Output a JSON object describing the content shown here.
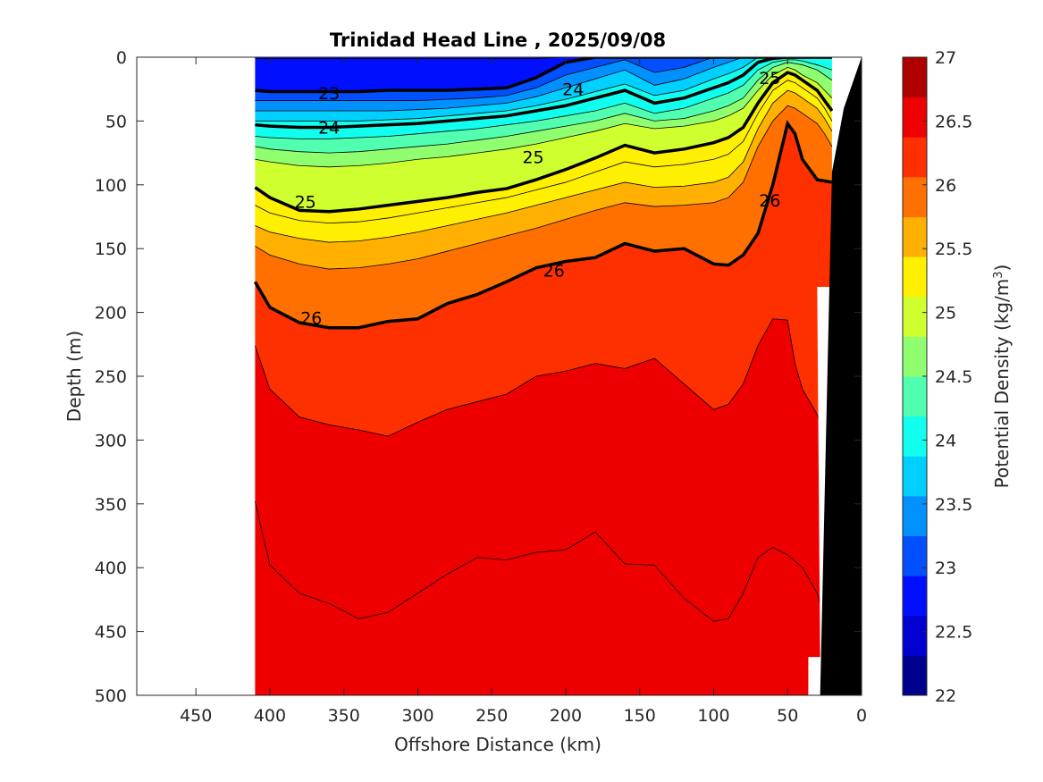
{
  "chart_data": {
    "type": "contour",
    "title": "Trinidad Head Line , 2025/09/08",
    "xlabel": "Offshore Distance (km)",
    "ylabel": "Depth (m)",
    "colorbar_label": "Potential Density (kg/m",
    "colorbar_label_sup": "3",
    "colorbar_label_end": ")",
    "xlim": [
      490,
      0
    ],
    "ylim": [
      500,
      0
    ],
    "x_reversed": true,
    "y_reversed": true,
    "x_ticks": [
      450,
      400,
      350,
      300,
      250,
      200,
      150,
      100,
      50,
      0
    ],
    "y_ticks": [
      0,
      50,
      100,
      150,
      200,
      250,
      300,
      350,
      400,
      450,
      500
    ],
    "colorbar_range": [
      22,
      27
    ],
    "colorbar_ticks": [
      "22",
      "22.5",
      "23",
      "23.5",
      "24",
      "24.5",
      "25",
      "25.5",
      "26",
      "26.5",
      "27"
    ],
    "colormap": [
      "#00008f",
      "#0000d0",
      "#0010ff",
      "#0050ff",
      "#0090ff",
      "#00d0ff",
      "#10ffef",
      "#50ffaf",
      "#90ff6f",
      "#d0ff2f",
      "#ffef00",
      "#ffb000",
      "#ff7000",
      "#ff3000",
      "#ef0000",
      "#af0000"
    ],
    "section_x_range": [
      410,
      20
    ],
    "bathymetry_color": "#000000",
    "data_column_x": [
      410,
      400,
      380,
      360,
      340,
      320,
      300,
      280,
      260,
      240,
      220,
      200,
      180,
      160,
      140,
      120,
      100,
      90,
      80,
      70,
      60,
      50,
      45,
      40,
      30,
      25,
      20
    ],
    "isopycnals": [
      {
        "value": 22.75,
        "depth": [
          1,
          1,
          1,
          1,
          1,
          1,
          1,
          1,
          1,
          1,
          1,
          0,
          0,
          0,
          0,
          0,
          0,
          0,
          0,
          0,
          0,
          0,
          0,
          0,
          0,
          0,
          0
        ]
      },
      {
        "value": 23.0,
        "depth": [
          26,
          27,
          27,
          27,
          27,
          26,
          26,
          26,
          25,
          24,
          16,
          4,
          0,
          0,
          0,
          0,
          0,
          0,
          0,
          0,
          0,
          0,
          0,
          0,
          0,
          0,
          0
        ]
      },
      {
        "value": 23.25,
        "depth": [
          34,
          34,
          34,
          34,
          34,
          34,
          34,
          33,
          32,
          30,
          24,
          14,
          8,
          2,
          12,
          8,
          0,
          0,
          0,
          0,
          0,
          0,
          0,
          0,
          0,
          0,
          0
        ]
      },
      {
        "value": 23.5,
        "depth": [
          42,
          42,
          42,
          42,
          42,
          42,
          41,
          40,
          38,
          36,
          31,
          24,
          17,
          10,
          22,
          17,
          8,
          4,
          0,
          0,
          0,
          0,
          0,
          0,
          0,
          0,
          0
        ]
      },
      {
        "value": 23.75,
        "depth": [
          50,
          50,
          50,
          50,
          50,
          49,
          48,
          46,
          44,
          42,
          38,
          33,
          27,
          21,
          30,
          26,
          17,
          13,
          8,
          0,
          0,
          0,
          0,
          0,
          0,
          0,
          0
        ]
      },
      {
        "value": 24.0,
        "depth": [
          53,
          54,
          55,
          55,
          54,
          53,
          52,
          50,
          48,
          46,
          42,
          38,
          32,
          26,
          36,
          32,
          24,
          20,
          14,
          4,
          1,
          0,
          0,
          0,
          0,
          0,
          0
        ]
      },
      {
        "value": 24.25,
        "depth": [
          62,
          63,
          64,
          64,
          63,
          62,
          60,
          58,
          56,
          53,
          50,
          46,
          42,
          36,
          44,
          40,
          32,
          28,
          22,
          10,
          4,
          2,
          2,
          3,
          6,
          8,
          10
        ]
      },
      {
        "value": 24.5,
        "depth": [
          70,
          72,
          74,
          75,
          74,
          72,
          70,
          68,
          65,
          62,
          58,
          54,
          50,
          44,
          50,
          48,
          42,
          38,
          32,
          18,
          8,
          4,
          5,
          6,
          10,
          14,
          18
        ]
      },
      {
        "value": 24.75,
        "depth": [
          80,
          82,
          85,
          86,
          85,
          83,
          80,
          78,
          75,
          72,
          68,
          63,
          58,
          52,
          56,
          54,
          50,
          46,
          40,
          26,
          14,
          8,
          10,
          14,
          20,
          26,
          32
        ]
      },
      {
        "value": 25.0,
        "depth": [
          102,
          110,
          120,
          121,
          119,
          116,
          113,
          110,
          106,
          103,
          96,
          88,
          79,
          69,
          75,
          72,
          67,
          63,
          55,
          36,
          20,
          12,
          14,
          18,
          26,
          34,
          42
        ]
      },
      {
        "value": 25.25,
        "depth": [
          116,
          122,
          128,
          130,
          129,
          126,
          122,
          118,
          114,
          110,
          104,
          98,
          90,
          82,
          86,
          84,
          80,
          76,
          66,
          44,
          26,
          18,
          20,
          24,
          32,
          40,
          50
        ]
      },
      {
        "value": 25.5,
        "depth": [
          132,
          137,
          142,
          145,
          144,
          141,
          137,
          132,
          127,
          122,
          116,
          110,
          104,
          98,
          102,
          101,
          98,
          94,
          82,
          56,
          36,
          26,
          28,
          32,
          40,
          48,
          58
        ]
      },
      {
        "value": 25.75,
        "depth": [
          148,
          155,
          162,
          166,
          165,
          162,
          158,
          152,
          146,
          140,
          134,
          127,
          120,
          114,
          117,
          116,
          114,
          110,
          98,
          70,
          50,
          38,
          40,
          44,
          52,
          60,
          70
        ]
      },
      {
        "value": 26.0,
        "depth": [
          176,
          196,
          208,
          212,
          212,
          207,
          205,
          193,
          186,
          176,
          165,
          160,
          157,
          146,
          152,
          150,
          162,
          163,
          155,
          138,
          100,
          52,
          60,
          80,
          96,
          97,
          98
        ]
      },
      {
        "value": 26.25,
        "depth": [
          226,
          260,
          282,
          288,
          292,
          297,
          286,
          276,
          270,
          264,
          250,
          246,
          240,
          244,
          236,
          256,
          276,
          272,
          256,
          226,
          205,
          206,
          240,
          260,
          280,
          300,
          320
        ]
      },
      {
        "value": 26.5,
        "depth": [
          348,
          398,
          420,
          428,
          440,
          435,
          420,
          405,
          392,
          394,
          388,
          386,
          372,
          397,
          398,
          424,
          442,
          440,
          420,
          392,
          384,
          390,
          395,
          400,
          420,
          440,
          460
        ]
      }
    ],
    "contour_labels": [
      {
        "text": "23",
        "x": 360,
        "depth": 28
      },
      {
        "text": "24",
        "x": 360,
        "depth": 55
      },
      {
        "text": "25",
        "x": 376,
        "depth": 113
      },
      {
        "text": "26",
        "x": 372,
        "depth": 204
      },
      {
        "text": "24",
        "x": 195,
        "depth": 25
      },
      {
        "text": "25",
        "x": 222,
        "depth": 78
      },
      {
        "text": "26",
        "x": 208,
        "depth": 167
      },
      {
        "text": "26",
        "x": 62,
        "depth": 112
      },
      {
        "text": "25",
        "x": 62,
        "depth": 16
      }
    ]
  }
}
